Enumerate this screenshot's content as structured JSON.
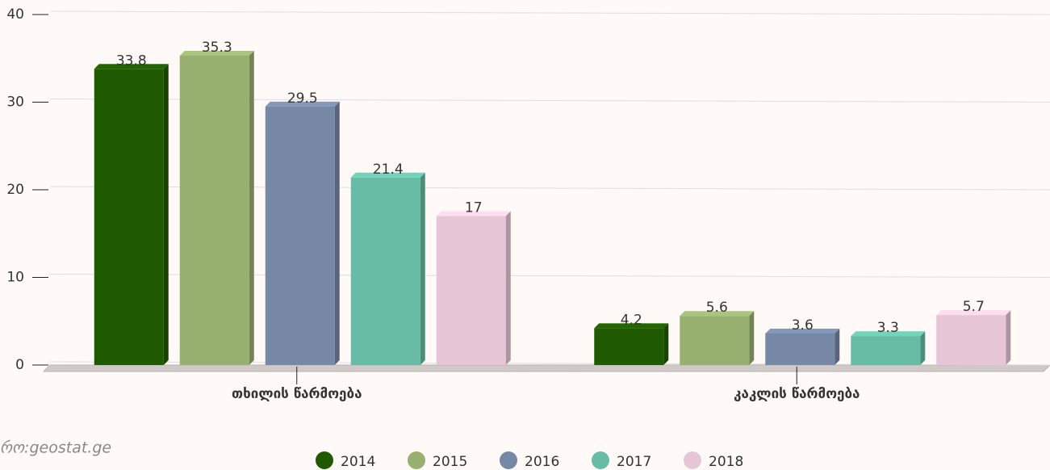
{
  "chart_data": {
    "type": "bar",
    "categories": [
      "თხილის წარმოება",
      "კაკლის წარმოება"
    ],
    "series": [
      {
        "name": "2014",
        "color": "#1f5a00",
        "values": [
          33.8,
          4.2
        ]
      },
      {
        "name": "2015",
        "color": "#97b070",
        "values": [
          35.3,
          5.6
        ]
      },
      {
        "name": "2016",
        "color": "#7787a6",
        "values": [
          29.5,
          3.6
        ]
      },
      {
        "name": "2017",
        "color": "#67bca5",
        "values": [
          21.4,
          3.3
        ]
      },
      {
        "name": "2018",
        "color": "#e6c5d7",
        "values": [
          17,
          5.7
        ]
      }
    ],
    "ylim": [
      0,
      40
    ],
    "yticks": [
      0,
      10,
      20,
      30,
      40
    ],
    "grid": true,
    "source": "რო:geostat.ge"
  }
}
